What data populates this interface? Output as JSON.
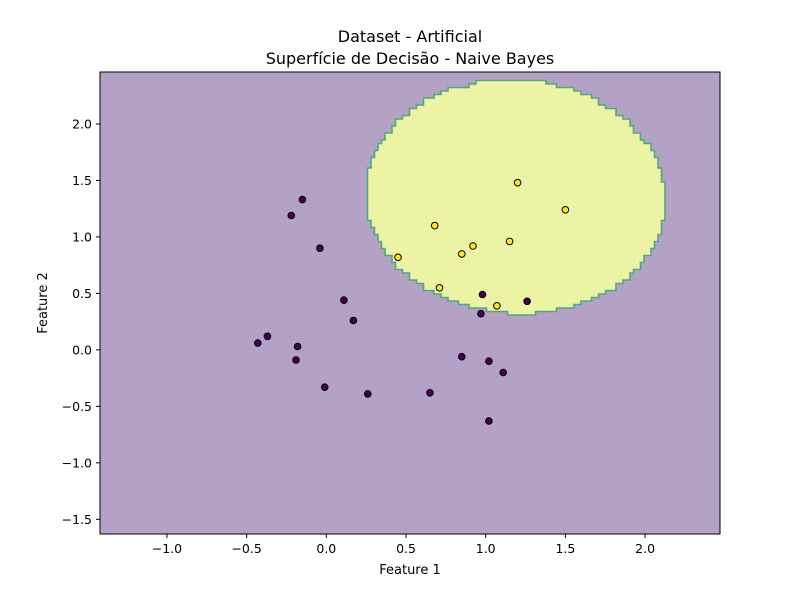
{
  "chart_data": {
    "type": "scatter",
    "title": "Dataset - Artificial",
    "subtitle": "Superfície de Decisão - Naive Bayes",
    "xlabel": "Feature 1",
    "ylabel": "Feature 2",
    "xlim": [
      -1.42,
      2.47
    ],
    "ylim": [
      -1.63,
      2.46
    ],
    "xticks": [
      -1.0,
      -0.5,
      0.0,
      0.5,
      1.0,
      1.5,
      2.0
    ],
    "xtick_labels": [
      "−1.0",
      "−0.5",
      "0.0",
      "0.5",
      "1.0",
      "1.5",
      "2.0"
    ],
    "yticks": [
      -1.5,
      -1.0,
      -0.5,
      0.0,
      0.5,
      1.0,
      1.5,
      2.0
    ],
    "ytick_labels": [
      "−1.5",
      "−1.0",
      "−0.5",
      "0.0",
      "0.5",
      "1.0",
      "1.5",
      "2.0"
    ],
    "grid": false,
    "legend": "none",
    "colors": {
      "background_region": "#b3a2c5",
      "decision_region": "#edf3a5",
      "decision_boundary": "#4fa87f",
      "class_0": "#440154",
      "class_1": "#fde725",
      "marker_edge": "#000000"
    },
    "decision_region": {
      "class": 1,
      "shape": "ellipse",
      "center": [
        1.1,
        1.35
      ],
      "x_range": [
        0.25,
        2.13
      ],
      "y_range": [
        0.32,
        2.39
      ]
    },
    "classes": [
      {
        "class": 0,
        "x": [
          -0.15,
          -0.22,
          -0.04,
          0.11,
          0.17,
          -0.37,
          -0.43,
          -0.18,
          -0.19,
          -0.01,
          0.26,
          0.65,
          0.85,
          0.98,
          1.26,
          0.97,
          1.02,
          1.11,
          1.02
        ],
        "y": [
          1.33,
          1.19,
          0.9,
          0.44,
          0.26,
          0.12,
          0.06,
          0.03,
          -0.09,
          -0.33,
          -0.39,
          -0.38,
          -0.06,
          0.49,
          0.43,
          0.32,
          -0.1,
          -0.2,
          -0.63
        ]
      },
      {
        "class": 1,
        "x": [
          1.2,
          1.5,
          0.68,
          0.92,
          1.15,
          0.45,
          0.85,
          0.71,
          1.07
        ],
        "y": [
          1.48,
          1.24,
          1.1,
          0.92,
          0.96,
          0.82,
          0.85,
          0.55,
          0.39
        ]
      }
    ]
  }
}
